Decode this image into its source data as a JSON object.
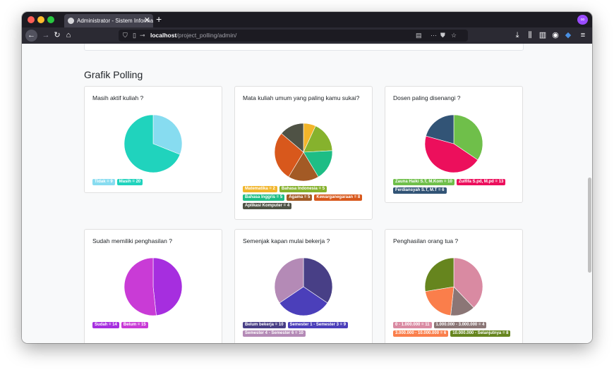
{
  "browser": {
    "tab_title": "Administrator - Sistem Informa",
    "url_host": "localhost",
    "url_path": "/project_polling/admin/"
  },
  "page": {
    "section_title": "Grafik Polling"
  },
  "polls": [
    {
      "title": "Masih aktif kuliah ?",
      "slices": [
        {
          "label": "Tidak = 9",
          "value": 9,
          "color": "#87dcf0"
        },
        {
          "label": "Masih = 20",
          "value": 20,
          "color": "#20d3bd"
        }
      ]
    },
    {
      "title": "Mata kuliah umum yang paling kamu sukai?",
      "slices": [
        {
          "label": "Matematika = 2",
          "value": 2,
          "color": "#f2b52a"
        },
        {
          "label": "Bahasa Indonesia = 5",
          "value": 5,
          "color": "#86b22d"
        },
        {
          "label": "Bahasa Inggris = 5",
          "value": 5,
          "color": "#1ebd85"
        },
        {
          "label": "Agama = 5",
          "value": 5,
          "color": "#a35a25"
        },
        {
          "label": "Kewarganegaraan = 8",
          "value": 8,
          "color": "#d8581c"
        },
        {
          "label": "Aplikasi Komputer = 4",
          "value": 4,
          "color": "#4f5245"
        }
      ]
    },
    {
      "title": "Dosen paling disenangi ?",
      "slices": [
        {
          "label": "Zauna Haiki S.T, M.Kom = 10",
          "value": 10,
          "color": "#6fbf4a"
        },
        {
          "label": "Zulfifa S.pd, M.pd = 13",
          "value": 13,
          "color": "#ec0f5c"
        },
        {
          "label": "Ferdiansyah S.T, M.T = 6",
          "value": 6,
          "color": "#325476"
        }
      ]
    },
    {
      "title": "Sudah memiliki penghasilan ?",
      "slices": [
        {
          "label": "Sudah = 14",
          "value": 14,
          "color": "#a62edf"
        },
        {
          "label": "Belum = 15",
          "value": 15,
          "color": "#c93bd6"
        }
      ]
    },
    {
      "title": "Semenjak kapan mulai bekerja ?",
      "slices": [
        {
          "label": "Belum bekerja = 10",
          "value": 10,
          "color": "#483f86"
        },
        {
          "label": "Semester 1 - Semester 3 = 9",
          "value": 9,
          "color": "#4b3fba"
        },
        {
          "label": "Semester 4 - Semester 6 = 10",
          "value": 10,
          "color": "#b48ab6"
        }
      ]
    },
    {
      "title": "Penghasilan orang tua ?",
      "slices": [
        {
          "label": "0 - 1.000.000 = 11",
          "value": 11,
          "color": "#d98aa2"
        },
        {
          "label": "1.000.000 - 3.000.000 = 4",
          "value": 4,
          "color": "#8b7676"
        },
        {
          "label": "3.000.000 - 10.000.000 = 6",
          "value": 6,
          "color": "#fa7e4b"
        },
        {
          "label": "10.000.000 - Selanjutnya = 8",
          "value": 8,
          "color": "#66851e"
        }
      ]
    }
  ]
}
